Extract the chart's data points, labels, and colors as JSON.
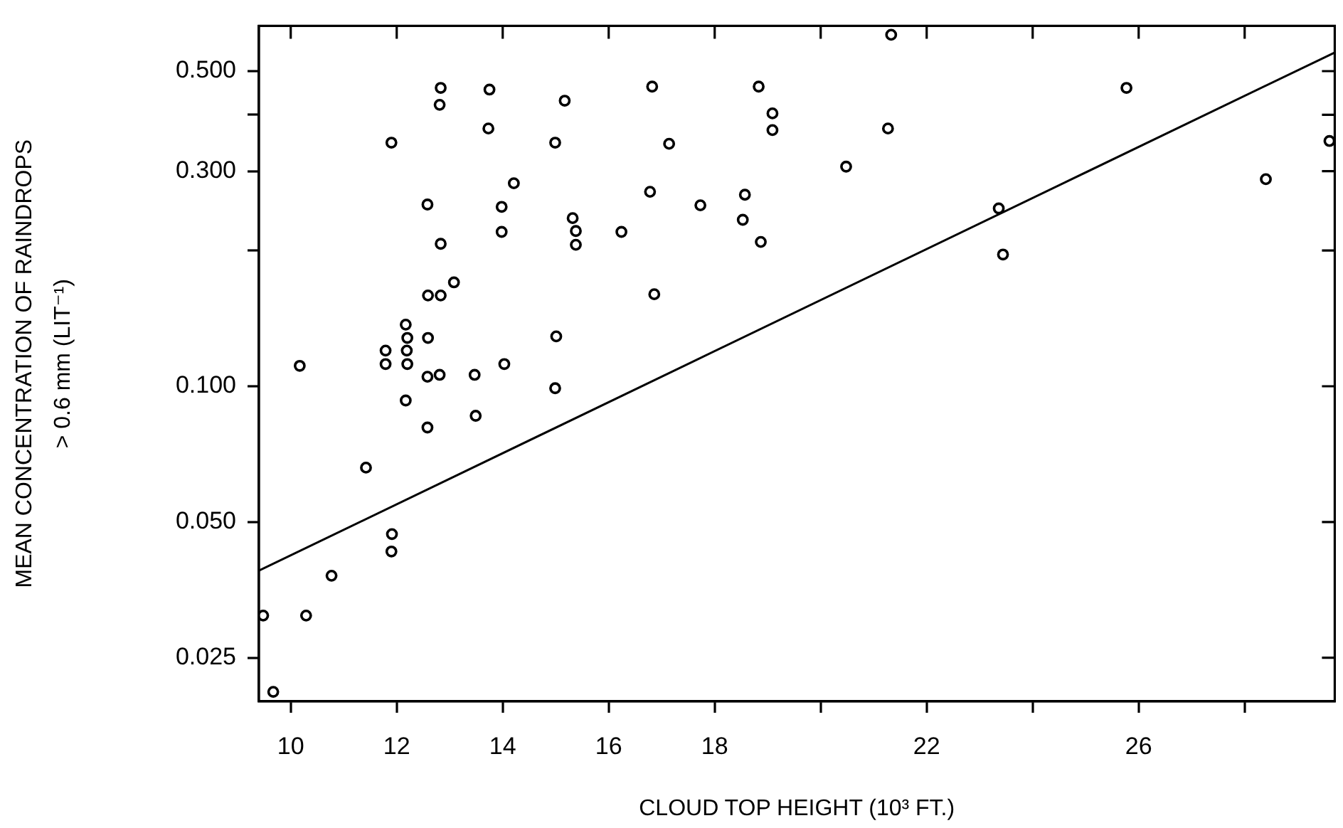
{
  "chart_data": {
    "type": "scatter",
    "xlabel": "CLOUD TOP HEIGHT (10³ FT.)",
    "ylabel": "MEAN CONCENTRATION OF RAINDROPS\n> 0.6 mm (LIT⁻¹)",
    "log": "y",
    "xlim": [
      9.4,
      29.7
    ],
    "xticks": [
      10,
      12,
      14,
      16,
      18,
      {
        "value": 20,
        "label": null
      },
      22,
      {
        "value": 24,
        "label": null
      },
      26,
      {
        "value": 28,
        "label": null
      }
    ],
    "ylim": [
      0.02,
      0.63
    ],
    "yticks": [
      {
        "value": 0.025,
        "label": "0.025"
      },
      {
        "value": 0.05,
        "label": "0.050"
      },
      {
        "value": 0.1,
        "label": "0.100"
      },
      {
        "value": 0.2,
        "label": null
      },
      {
        "value": 0.3,
        "label": "0.300"
      },
      {
        "value": 0.4,
        "label": null
      },
      {
        "value": 0.5,
        "label": "0.500"
      }
    ],
    "series": [
      {
        "type": "scatter",
        "color": "#000000",
        "marker": "circle",
        "x": [
          9.48,
          9.67,
          10.17,
          10.29,
          10.77,
          11.42,
          11.79,
          11.79,
          11.9,
          11.91,
          11.9,
          12.17,
          12.2,
          12.19,
          12.2,
          12.17,
          12.58,
          12.59,
          12.59,
          12.58,
          12.58,
          12.83,
          12.81,
          12.83,
          12.83,
          12.81,
          13.08,
          13.75,
          13.73,
          14.21,
          13.98,
          13.98,
          13.47,
          13.49,
          14.03,
          15.17,
          14.99,
          15.32,
          15.38,
          15.38,
          16.24,
          15.01,
          14.99,
          16.82,
          17.14,
          16.78,
          16.86,
          17.73,
          18.57,
          18.53,
          18.87,
          18.83,
          19.09,
          19.09,
          21.27,
          20.48,
          21.33,
          23.36,
          23.44,
          25.77,
          28.4,
          29.6
        ],
        "values": [
          0.031,
          0.021,
          0.111,
          0.031,
          0.038,
          0.066,
          0.12,
          0.112,
          0.347,
          0.047,
          0.043,
          0.137,
          0.128,
          0.12,
          0.112,
          0.093,
          0.253,
          0.159,
          0.128,
          0.105,
          0.081,
          0.459,
          0.421,
          0.207,
          0.159,
          0.106,
          0.17,
          0.455,
          0.373,
          0.282,
          0.25,
          0.22,
          0.106,
          0.086,
          0.112,
          0.43,
          0.347,
          0.236,
          0.221,
          0.206,
          0.22,
          0.129,
          0.099,
          0.462,
          0.345,
          0.27,
          0.16,
          0.252,
          0.266,
          0.234,
          0.209,
          0.462,
          0.403,
          0.37,
          0.373,
          0.307,
          0.602,
          0.248,
          0.196,
          0.459,
          0.288,
          0.35
        ]
      },
      {
        "type": "line",
        "color": "#000000",
        "marker": "none",
        "line_style": "solid",
        "x": [
          9.4,
          29.7
        ],
        "values": [
          0.039,
          0.55
        ]
      }
    ]
  }
}
